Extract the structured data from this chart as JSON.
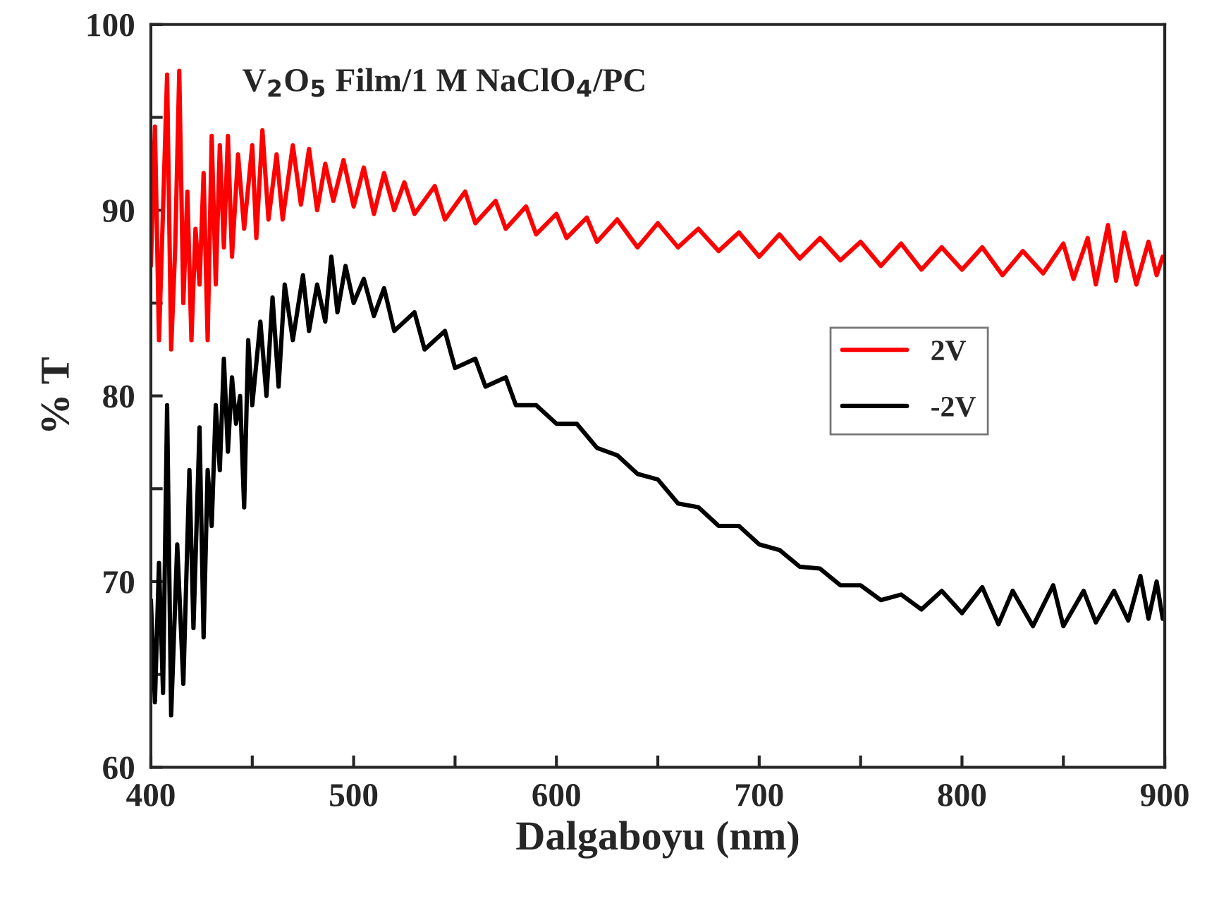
{
  "chart_data": {
    "type": "line",
    "xlabel": "Dalgaboyu (nm)",
    "ylabel": "% T",
    "annotations": [
      "V$_{2}$O$_{5}$ Film/1 M NaClO$_{4}$/PC"
    ],
    "xlim": [
      400,
      900
    ],
    "xticks": [
      400,
      {
        "value": 450,
        "label": null
      },
      500,
      {
        "value": 550,
        "label": null
      },
      600,
      {
        "value": 650,
        "label": null
      },
      700,
      {
        "value": 750,
        "label": null
      },
      800,
      {
        "value": 850,
        "label": null
      },
      900
    ],
    "ylim": [
      60,
      100
    ],
    "yticks": [
      60,
      {
        "value": 65,
        "label": null
      },
      70,
      {
        "value": 75,
        "label": null
      },
      80,
      {
        "value": 85,
        "label": null
      },
      90,
      {
        "value": 95,
        "label": null
      },
      100
    ],
    "grid": false,
    "legend": "right",
    "marker": "none",
    "line_style": "solid",
    "series": [
      {
        "name": "2V",
        "color": "#ff0000",
        "x": [
          400,
          402,
          404,
          406,
          408,
          410,
          412,
          414,
          416,
          418,
          420,
          422,
          424,
          426,
          428,
          430,
          432,
          434,
          436,
          438,
          440,
          443,
          446,
          450,
          452,
          455,
          458,
          462,
          465,
          470,
          474,
          478,
          482,
          486,
          490,
          495,
          500,
          505,
          510,
          515,
          520,
          525,
          530,
          540,
          545,
          555,
          560,
          570,
          575,
          585,
          590,
          600,
          605,
          615,
          620,
          630,
          640,
          650,
          660,
          670,
          680,
          690,
          700,
          710,
          720,
          730,
          740,
          750,
          760,
          770,
          780,
          790,
          800,
          810,
          820,
          830,
          840,
          850,
          855,
          862,
          866,
          872,
          876,
          880,
          886,
          892,
          896,
          899
        ],
        "values": [
          87,
          94.5,
          83,
          90,
          97.3,
          82.5,
          88,
          97.5,
          85,
          91,
          83,
          89,
          86,
          92,
          83,
          94,
          86,
          93.5,
          88,
          94,
          87.5,
          93,
          89,
          93.5,
          88.5,
          94.3,
          89.5,
          93,
          89.5,
          93.5,
          90.3,
          93.3,
          90,
          92.5,
          90.5,
          92.7,
          90.2,
          92.3,
          89.8,
          92,
          90,
          91.5,
          89.8,
          91.3,
          89.5,
          91,
          89.3,
          90.5,
          89,
          90.2,
          88.7,
          89.8,
          88.5,
          89.6,
          88.3,
          89.5,
          88,
          89.3,
          88,
          89,
          87.8,
          88.8,
          87.5,
          88.7,
          87.4,
          88.5,
          87.3,
          88.3,
          87,
          88.2,
          86.8,
          88,
          86.8,
          88,
          86.5,
          87.8,
          86.6,
          88.2,
          86.3,
          88.5,
          86,
          89.2,
          86.2,
          88.8,
          86,
          88.3,
          86.5,
          87.5
        ]
      },
      {
        "name": "-2V",
        "color": "#000000",
        "x": [
          400,
          402,
          404,
          406,
          408,
          410,
          413,
          416,
          419,
          421,
          424,
          426,
          428,
          430,
          432,
          434,
          436,
          438,
          440,
          442,
          444,
          446,
          448,
          450,
          454,
          457,
          460,
          463,
          466,
          470,
          475,
          478,
          482,
          486,
          489,
          492,
          496,
          500,
          505,
          510,
          515,
          520,
          530,
          535,
          545,
          550,
          560,
          565,
          575,
          580,
          590,
          600,
          610,
          620,
          630,
          640,
          650,
          660,
          670,
          680,
          690,
          700,
          710,
          720,
          730,
          740,
          750,
          760,
          770,
          780,
          790,
          800,
          810,
          818,
          825,
          835,
          845,
          850,
          860,
          866,
          875,
          882,
          888,
          892,
          896,
          899
        ],
        "values": [
          69,
          63.5,
          71,
          64,
          79.5,
          62.8,
          72,
          64.5,
          76,
          67.5,
          78.3,
          67,
          76,
          73,
          79.5,
          76,
          82,
          77,
          81,
          78.5,
          80,
          74,
          83,
          79.5,
          84,
          80,
          85.3,
          80.5,
          86,
          83,
          86.5,
          83.5,
          86,
          84,
          87.5,
          84.5,
          87,
          85,
          86.3,
          84.3,
          85.8,
          83.5,
          84.5,
          82.5,
          83.5,
          81.5,
          82,
          80.5,
          81,
          79.5,
          79.5,
          78.5,
          78.5,
          77.2,
          76.8,
          75.8,
          75.5,
          74.2,
          74,
          73,
          73,
          72,
          71.7,
          70.8,
          70.7,
          69.8,
          69.8,
          69,
          69.3,
          68.5,
          69.5,
          68.3,
          69.7,
          67.7,
          69.5,
          67.6,
          69.8,
          67.6,
          69.5,
          67.8,
          69.5,
          67.9,
          70.3,
          68,
          70,
          68
        ]
      }
    ]
  }
}
